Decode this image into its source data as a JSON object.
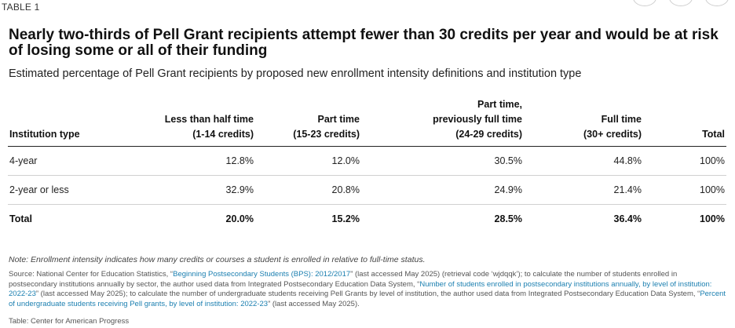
{
  "table_label": "TABLE 1",
  "title": "Nearly two-thirds of Pell Grant recipients attempt fewer than 30 credits per year and would be at risk of losing some or all of their funding",
  "subtitle": "Estimated percentage of Pell Grant recipients by proposed new enrollment intensity definitions and institution type",
  "table": {
    "headers": [
      {
        "line1": "",
        "line2": "",
        "line3": "Institution type"
      },
      {
        "line1": "",
        "line2": "Less than half time",
        "line3": "(1-14 credits)"
      },
      {
        "line1": "",
        "line2": "Part time",
        "line3": "(15-23 credits)"
      },
      {
        "line1": "Part time,",
        "line2": "previously full time",
        "line3": "(24-29 credits)"
      },
      {
        "line1": "",
        "line2": "Full time",
        "line3": "(30+ credits)"
      },
      {
        "line1": "",
        "line2": "",
        "line3": "Total"
      }
    ],
    "rows": [
      [
        "4-year",
        "12.8%",
        "12.0%",
        "30.5%",
        "44.8%",
        "100%"
      ],
      [
        "2-year or less",
        "32.9%",
        "20.8%",
        "24.9%",
        "21.4%",
        "100%"
      ]
    ],
    "total_row": [
      "Total",
      "20.0%",
      "15.2%",
      "28.5%",
      "36.4%",
      "100%"
    ]
  },
  "note": "Note: Enrollment intensity indicates how many credits or courses a student is enrolled in relative to full-time status.",
  "source": {
    "p1": "Source: National Center for Education Statistics, “",
    "link1": "Beginning Postsecondary Students (BPS): 2012/2017",
    "p2": "” (last accessed May 2025) (retrieval code ‘wjdqqk’); to calculate the number of students enrolled in postsecondary institutions annually by sector, the author used data from Integrated Postsecondary Education Data System, “",
    "link2": "Number of students enrolled in postsecondary institutions annually, by level of institution: 2022-23",
    "p3": "” (last accessed May 2025); to calculate the number of undergraduate students receiving Pell Grants by level of institution, the author used data from Integrated Postsecondary Education Data System, “",
    "link3": "Percent of undergraduate students receiving Pell grants, by level of institution: 2022-23",
    "p4": "” (last accessed May 2025)."
  },
  "credit": "Table: Center for American Progress"
}
